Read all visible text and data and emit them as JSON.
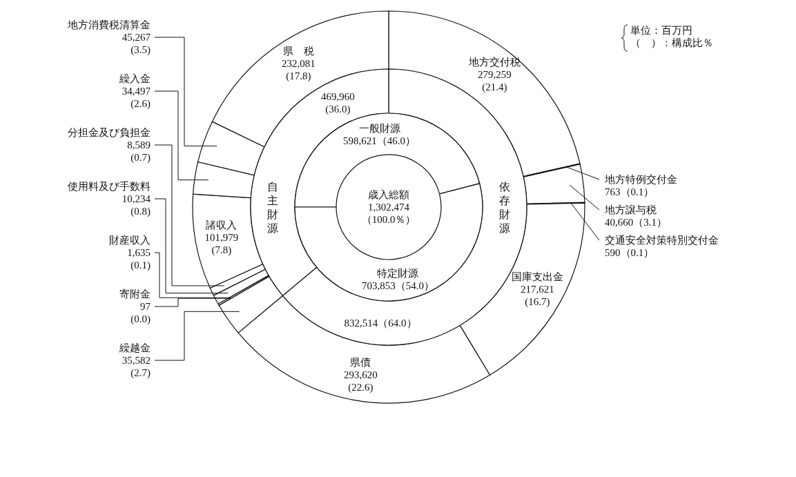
{
  "chart_data": [
    {
      "type": "donut",
      "title": "歳入総額",
      "subtitle": "1,302,474\n（100.0％）",
      "annotations": [
        "単位：百万円",
        "（　）：構成比％"
      ],
      "categories": [
        "一般財源",
        "特定財源"
      ],
      "values": [
        598621,
        703853
      ],
      "colors": [
        "#ffffff",
        "#ffffff"
      ],
      "value_labels": [
        "598,621（46.0）",
        "703,853（54.0）"
      ]
    },
    {
      "type": "donut",
      "categories": [
        "依存財源",
        "自主財源"
      ],
      "values": [
        832514,
        469960
      ],
      "colors": [
        "#ffffff",
        "#ffffff"
      ],
      "value_labels": [
        "832,514（64.0）",
        "469,960\n(36.0)"
      ]
    },
    {
      "type": "donut",
      "categories": [
        "地方交付税",
        "地方特例交付金",
        "地方譲与税",
        "交通安全対策特別交付金",
        "国庫支出金",
        "県債",
        "繰越金",
        "寄附金",
        "財産収入",
        "使用料及び手数料",
        "分担金及び負担金",
        "諸収入",
        "繰入金",
        "地方消費税清算金",
        "県　税"
      ],
      "values": [
        279259,
        763,
        40660,
        590,
        217621,
        293620,
        35582,
        97,
        1635,
        10234,
        8589,
        101979,
        34497,
        45267,
        232081
      ],
      "colors": [
        "#ffffff",
        "#ffffff",
        "#ffffff",
        "#ffffff",
        "#ffffff",
        "#ffffff",
        "#ffffff",
        "#ffffff",
        "#ffffff",
        "#ffffff",
        "#ffffff",
        "#ffffff",
        "#ffffff",
        "#ffffff",
        "#ffffff"
      ],
      "value_labels": [
        "279,259\n(21.4)",
        "763（0.1）",
        "40,660（3.1）",
        "590（0.1）",
        "217,621\n(16.7)",
        "293,620\n(22.6)",
        "35,582\n(2.7)",
        "97\n(0.0)",
        "1,635\n(0.1)",
        "10,234\n(0.8)",
        "8,589\n(0.7)",
        "101,979\n(7.8)",
        "34,497\n(2.6)",
        "45,267\n(3.5)",
        "232,081\n(17.8)"
      ]
    }
  ]
}
